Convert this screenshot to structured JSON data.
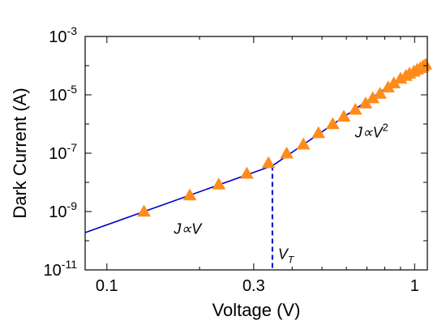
{
  "chart_data": {
    "type": "scatter",
    "xlabel": "Voltage (V)",
    "ylabel": "Dark Current (A)",
    "xscale": "log",
    "yscale": "log",
    "xlim": [
      0.085,
      1.1
    ],
    "ylim": [
      1e-11,
      0.001
    ],
    "grid": false,
    "x_ticks": [
      {
        "value": 0.1,
        "label": "0.1"
      },
      {
        "value": 0.3,
        "label": "0.3"
      },
      {
        "value": 1,
        "label": "1"
      }
    ],
    "y_ticks": [
      {
        "value": 1e-11,
        "base": "10",
        "exp": "-11"
      },
      {
        "value": 1e-09,
        "base": "10",
        "exp": "-9"
      },
      {
        "value": 1e-07,
        "base": "10",
        "exp": "-7"
      },
      {
        "value": 1e-05,
        "base": "10",
        "exp": "-5"
      },
      {
        "value": 0.001,
        "base": "10",
        "exp": "-3"
      }
    ],
    "points": [
      [
        0.132,
        1e-09
      ],
      [
        0.186,
        3.6e-09
      ],
      [
        0.231,
        8.5e-09
      ],
      [
        0.285,
        2e-08
      ],
      [
        0.335,
        4.6e-08
      ],
      [
        0.384,
        9.8e-08
      ],
      [
        0.435,
        2e-07
      ],
      [
        0.487,
        4.9e-07
      ],
      [
        0.542,
        1e-06
      ],
      [
        0.589,
        1.8e-06
      ],
      [
        0.642,
        3.1e-06
      ],
      [
        0.693,
        5.1e-06
      ],
      [
        0.731,
        7.7e-06
      ],
      [
        0.772,
        1.1e-05
      ],
      [
        0.82,
        1.8e-05
      ],
      [
        0.856,
        2.5e-05
      ],
      [
        0.9,
        3.6e-05
      ],
      [
        0.937,
        4.5e-05
      ],
      [
        0.962,
        5.4e-05
      ],
      [
        0.995,
        6.3e-05
      ],
      [
        1.02,
        7.4e-05
      ],
      [
        1.045,
        8.3e-05
      ],
      [
        1.065,
        9.6e-05
      ],
      [
        1.085,
        0.00011
      ]
    ],
    "fit_lines": [
      {
        "x": [
          0.085,
          0.345
        ],
        "y": [
          1.9e-10,
          3.7e-08
        ]
      },
      {
        "x": [
          0.345,
          1.1
        ],
        "y": [
          3.7e-08,
          0.00016
        ]
      }
    ],
    "threshold": {
      "x": 0.345,
      "y": 3.7e-08
    },
    "annotations": [
      {
        "id": "ohmic",
        "text": "J∝V",
        "x": 0.165,
        "y": 1.7e-10
      },
      {
        "id": "sclc",
        "text": "J∝V",
        "sup": "2",
        "x": 0.64,
        "y": 3.5e-07
      },
      {
        "id": "vt",
        "text": "V",
        "sub": "T",
        "x": 0.36,
        "y": 2.4e-11
      }
    ],
    "colors": {
      "marker": "#FF8C1A",
      "line": "#0000CC",
      "threshold": "#0000CC"
    }
  }
}
